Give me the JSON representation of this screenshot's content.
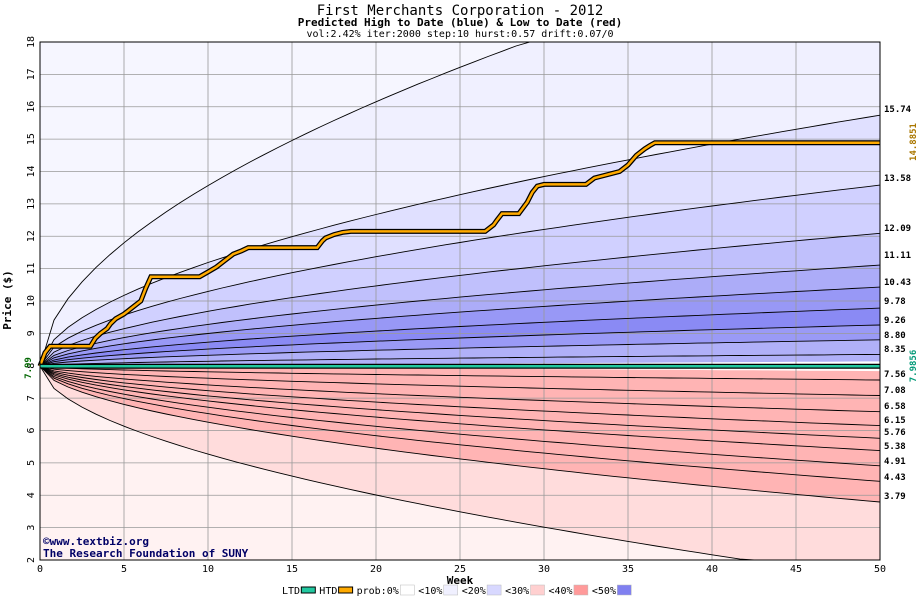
{
  "chart_data": {
    "type": "area",
    "title": "First Merchants Corporation - 2012",
    "subtitle": "Predicted High to Date (blue) &  Low to Date (red)",
    "params": "vol:2.42% iter:2000 step:10 hurst:0.57 drift:0.07/0",
    "xlabel": "Week",
    "ylabel": "Price ($)",
    "xlim": [
      0,
      50
    ],
    "ylim": [
      2,
      18
    ],
    "x_ticks": [
      0,
      5,
      10,
      15,
      20,
      25,
      30,
      35,
      40,
      45,
      50
    ],
    "y_ticks": [
      2,
      3,
      4,
      5,
      6,
      7,
      8,
      9,
      10,
      11,
      12,
      13,
      14,
      15,
      16,
      17,
      18
    ],
    "grid": true,
    "start_price": 7.99,
    "start_label": "7.99",
    "high_curve_end_values": [
      15.74,
      13.58,
      12.09,
      11.11,
      10.43,
      9.78,
      9.26,
      8.8,
      8.35
    ],
    "low_curve_end_values": [
      7.56,
      7.08,
      6.58,
      6.15,
      5.76,
      5.38,
      4.91,
      4.43,
      3.79
    ],
    "right_labels": [
      "15.74",
      "13.58",
      "12.09",
      "11.11",
      "10.43",
      "9.78",
      "9.26",
      "8.80",
      "8.35",
      "7.56",
      "7.08",
      "6.58",
      "6.15",
      "5.76",
      "5.38",
      "4.91",
      "4.43",
      "3.79"
    ],
    "htd_final": 14.8851,
    "htd_final_label": "14.8851",
    "ltd_final": 7.9856,
    "ltd_final_label": "7.9856",
    "series": [
      {
        "name": "HTD",
        "x": [
          0,
          0.3,
          0.6,
          3,
          3.3,
          3.6,
          4,
          4.2,
          4.5,
          5,
          5.5,
          6,
          6.3,
          6.6,
          9.5,
          10,
          10.5,
          11,
          11.5,
          12,
          12.4,
          13,
          16.5,
          16.8,
          17,
          17.5,
          18,
          18.5,
          26.5,
          27,
          27.2,
          27.5,
          28.5,
          29,
          29.3,
          29.6,
          30,
          30.5,
          32.5,
          33,
          34.5,
          35,
          35.5,
          36,
          36.3,
          36.6,
          50
        ],
        "values": [
          7.99,
          8.4,
          8.6,
          8.6,
          8.85,
          9.0,
          9.15,
          9.3,
          9.45,
          9.6,
          9.8,
          10.0,
          10.4,
          10.75,
          10.75,
          10.9,
          11.05,
          11.25,
          11.45,
          11.55,
          11.65,
          11.65,
          11.65,
          11.85,
          11.95,
          12.05,
          12.12,
          12.15,
          12.15,
          12.35,
          12.5,
          12.7,
          12.7,
          13.05,
          13.35,
          13.55,
          13.6,
          13.6,
          13.6,
          13.8,
          14.0,
          14.2,
          14.5,
          14.7,
          14.8,
          14.89,
          14.89
        ]
      },
      {
        "name": "LTD",
        "x": [
          0,
          0.5,
          50
        ],
        "values": [
          7.99,
          7.9856,
          7.9856
        ]
      }
    ],
    "legend": {
      "placement": "bottom",
      "items": [
        {
          "name": "LTD",
          "color": "#22c8a0",
          "kind": "line"
        },
        {
          "name": "HTD",
          "color": "#ffaa00",
          "kind": "line"
        },
        {
          "name": "prob:0%",
          "color": "#ffffff",
          "kind": "swatch"
        },
        {
          "name": "<10%",
          "color": "#f0f0ff",
          "kind": "swatch"
        },
        {
          "name": "<20%",
          "color": "#d8d8ff",
          "kind": "swatch"
        },
        {
          "name": "<30%",
          "color": "#ffd0d0",
          "kind": "swatch"
        },
        {
          "name": "<40%",
          "color": "#ff9a9a",
          "kind": "swatch"
        },
        {
          "name": "<50%",
          "color": "#8080f0",
          "kind": "swatch"
        }
      ]
    },
    "colors": {
      "blue_bands": [
        "#f0f0ff",
        "#e0e0ff",
        "#d0d0ff",
        "#c0c0fc",
        "#acacf8",
        "#9898f6",
        "#8a8af4",
        "#9a9af6",
        "#b0b0f8"
      ],
      "red_bands": [
        "#ffdcdc",
        "#ffcccc",
        "#ffbcbc",
        "#ffacac",
        "#ff9c9c",
        "#ff8f8f",
        "#ff8282",
        "#ff8e8e",
        "#ffb4b4"
      ],
      "htd": "#ffaa00",
      "ltd": "#22c8a0",
      "start_label": "#006600",
      "htd_label": "#aa7700",
      "ltd_label": "#009977"
    }
  },
  "footer": {
    "credit_line1": "©www.textbiz.org",
    "credit_line2": "The Research Foundation of SUNY"
  }
}
